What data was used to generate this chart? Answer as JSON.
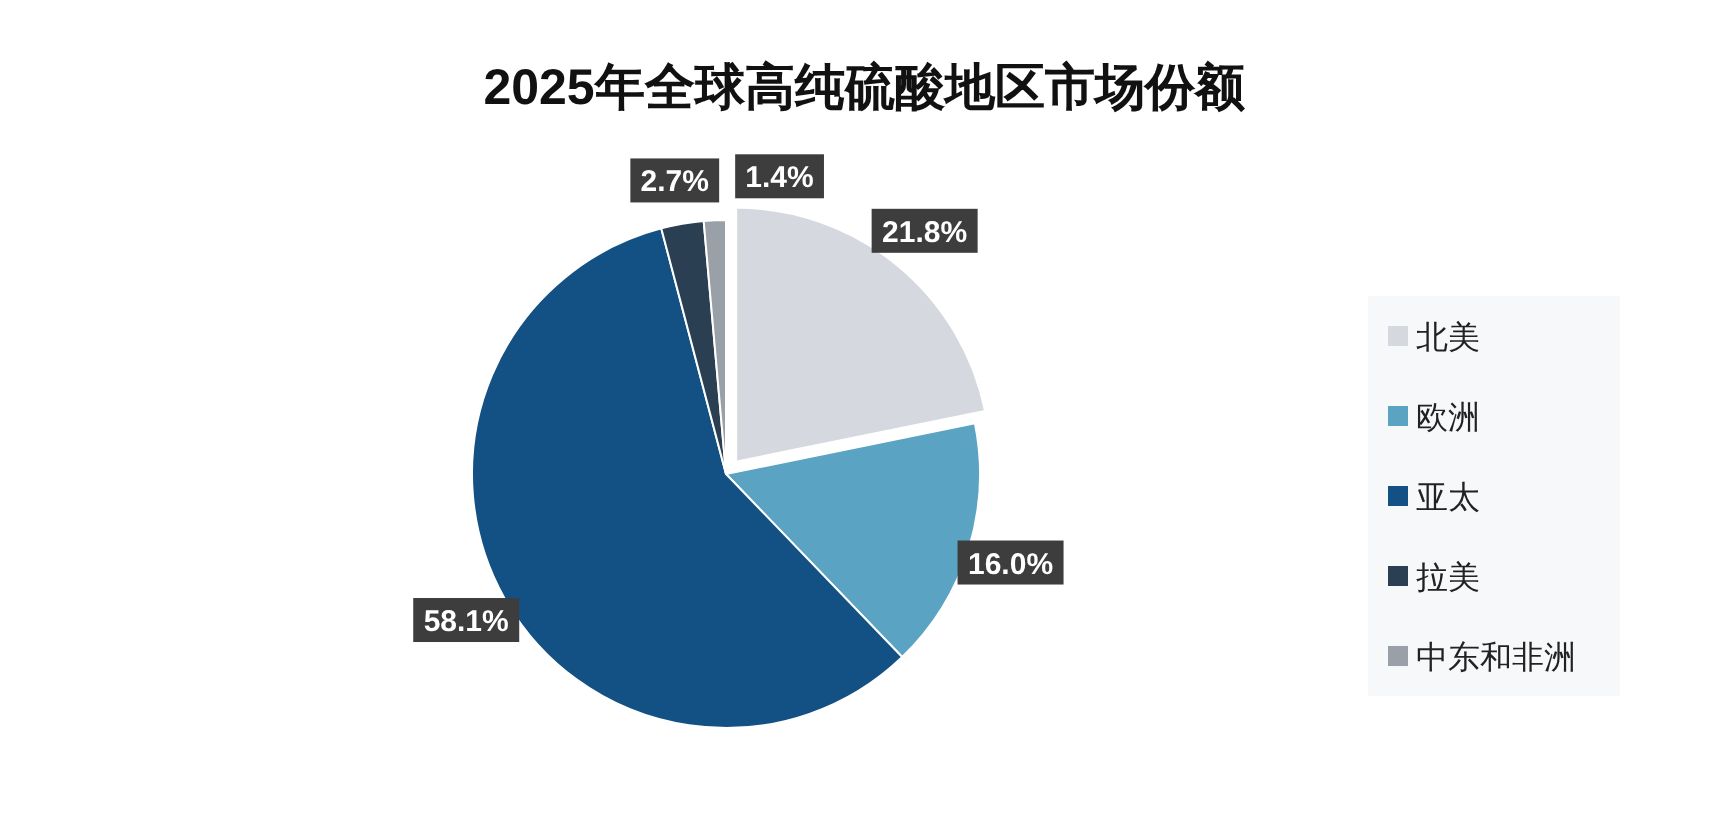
{
  "chart_data": {
    "type": "pie",
    "title": "2025年全球高纯硫酸地区市场份额",
    "categories": [
      "北美",
      "欧洲",
      "亚太",
      "拉美",
      "中东和非洲"
    ],
    "values": [
      21.8,
      16.0,
      58.1,
      2.7,
      1.4
    ],
    "value_labels": [
      "21.8%",
      "16.0%",
      "58.1%",
      "2.7%",
      "1.4%"
    ],
    "colors": [
      "#d5d9df",
      "#5ba3c2",
      "#135184",
      "#2a3f52",
      "#9aa0a8"
    ],
    "legend": "right"
  }
}
